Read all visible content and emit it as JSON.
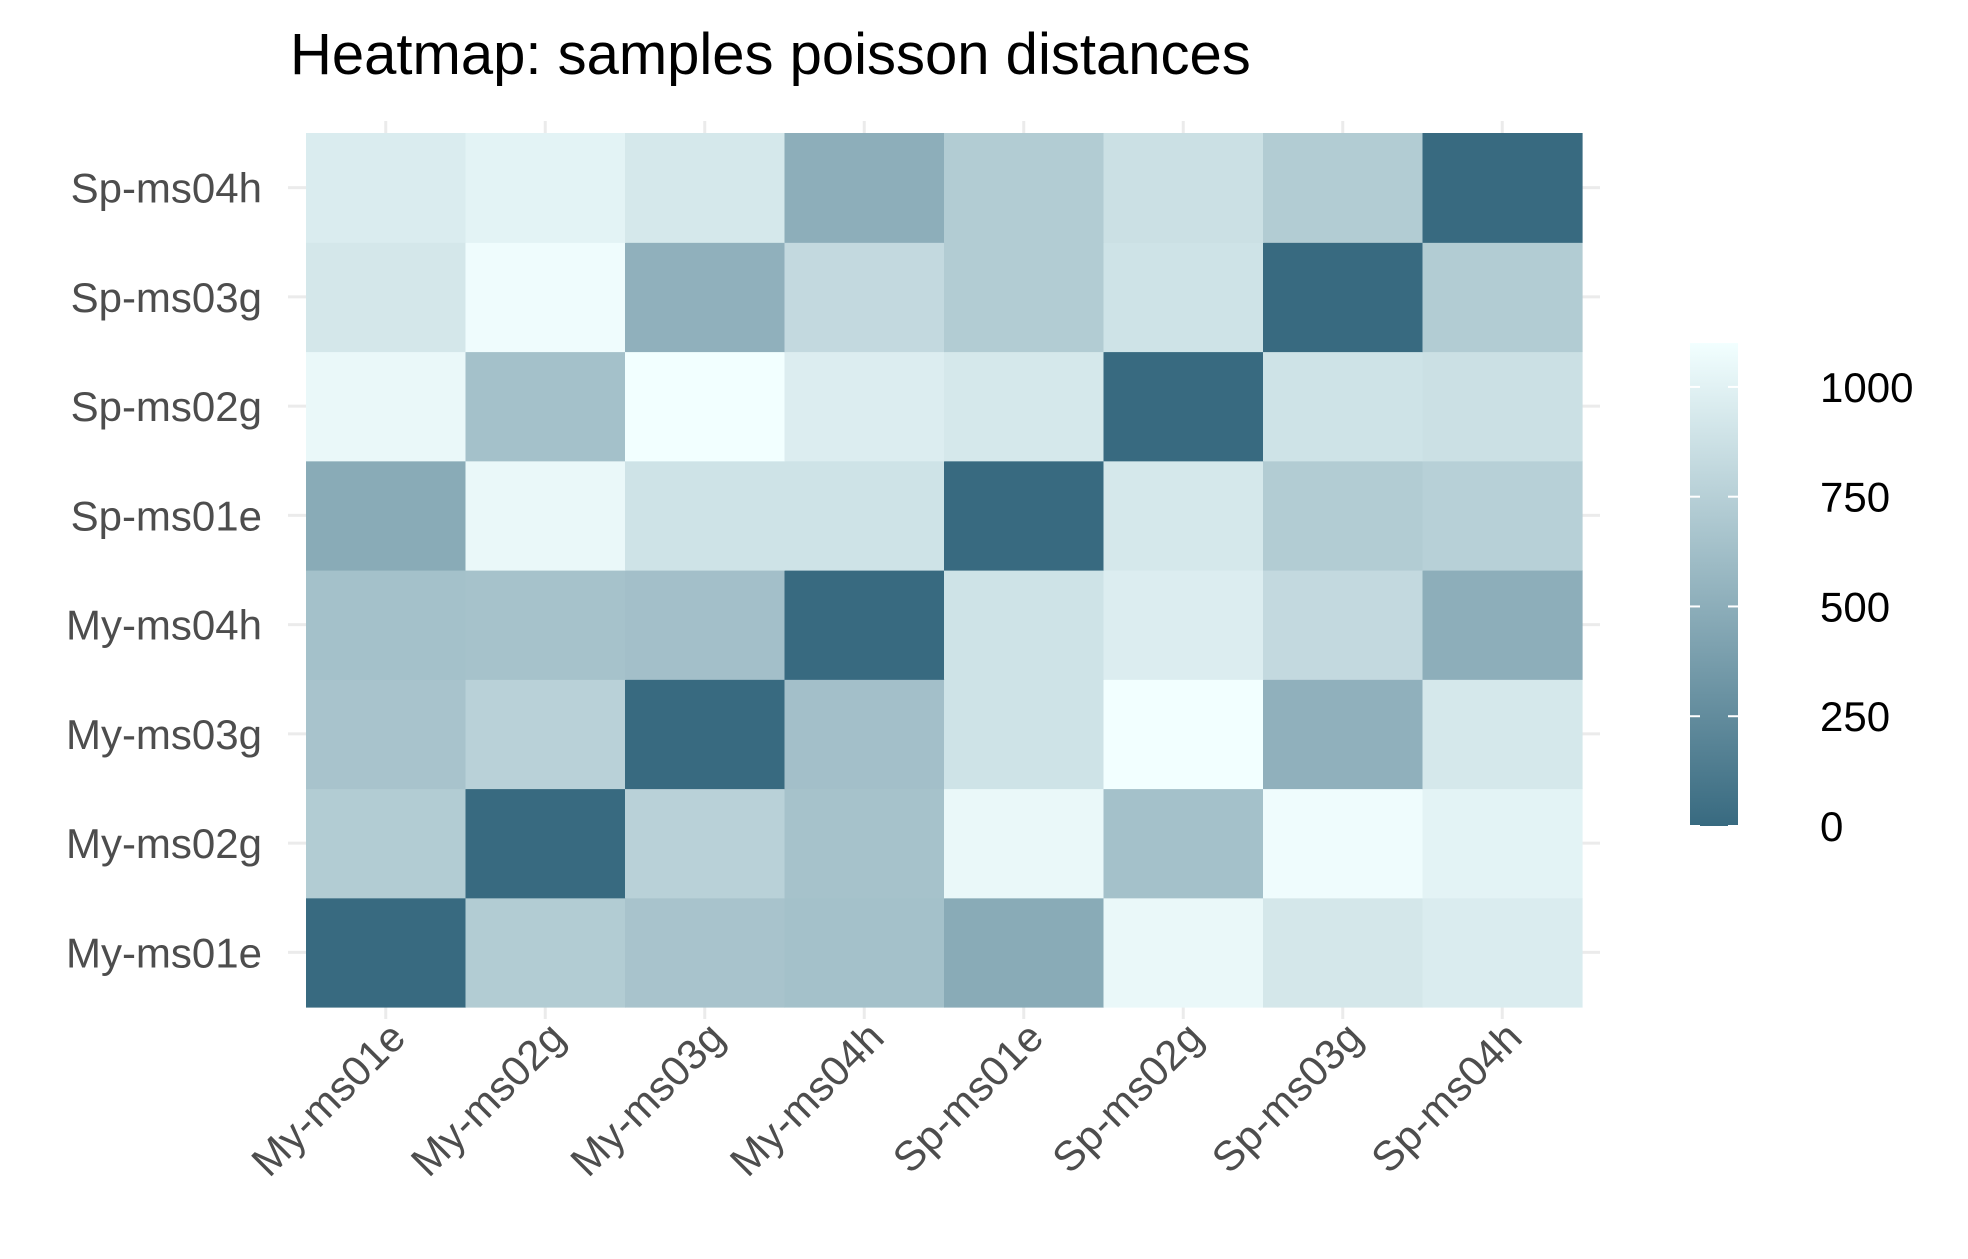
{
  "chart_data": {
    "type": "heatmap",
    "title": "Heatmap: samples poisson distances",
    "xlabel": "",
    "ylabel": "",
    "x_categories": [
      "My-ms01e",
      "My-ms02g",
      "My-ms03g",
      "My-ms04h",
      "Sp-ms01e",
      "Sp-ms02g",
      "Sp-ms03g",
      "Sp-ms04h"
    ],
    "y_categories": [
      "My-ms01e",
      "My-ms02g",
      "My-ms03g",
      "My-ms04h",
      "Sp-ms01e",
      "Sp-ms02g",
      "Sp-ms03g",
      "Sp-ms04h"
    ],
    "matrix": [
      [
        0,
        720,
        660,
        640,
        480,
        1050,
        920,
        960
      ],
      [
        720,
        0,
        760,
        650,
        1050,
        640,
        1080,
        1010
      ],
      [
        660,
        760,
        0,
        630,
        890,
        1100,
        520,
        930
      ],
      [
        640,
        650,
        630,
        0,
        890,
        970,
        820,
        500
      ],
      [
        480,
        1050,
        890,
        890,
        0,
        930,
        720,
        750
      ],
      [
        1050,
        640,
        1100,
        970,
        930,
        0,
        890,
        870
      ],
      [
        920,
        1080,
        520,
        820,
        720,
        890,
        0,
        720
      ],
      [
        960,
        1010,
        930,
        500,
        720,
        870,
        720,
        0
      ]
    ],
    "color_scale": {
      "low": "#386a80",
      "high": "#f2ffff",
      "limits": [
        0,
        1100
      ],
      "breaks": [
        0,
        250,
        500,
        750,
        1000
      ],
      "break_labels": [
        "0",
        "250",
        "500",
        "750",
        "1000"
      ]
    },
    "legend_position": "right",
    "grid": true
  }
}
